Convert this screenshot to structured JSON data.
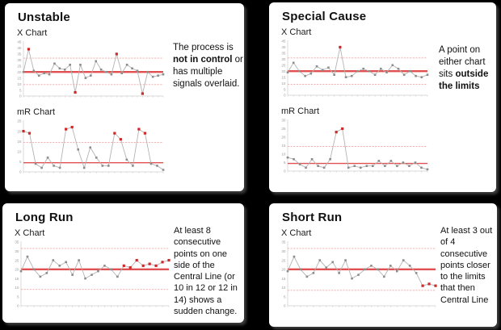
{
  "colors": {
    "background": "#000000",
    "panel": "#ffffff",
    "limit_line": "#f0a8a8",
    "center_line": "#e05050",
    "series_line": "#b3b3b3",
    "marker": "#8c8c8c",
    "marker_out": "#cc2a2a",
    "axis": "#cccccc",
    "tick_label": "#9a9a9a"
  },
  "panels": [
    {
      "title": "Unstable",
      "description": [
        {
          "text": "The process is ",
          "bold": false
        },
        {
          "text": "not in control",
          "bold": true
        },
        {
          "text": " or has multiple signals overlaid.",
          "bold": false
        }
      ]
    },
    {
      "title": "Special Cause",
      "description": [
        {
          "text": "A point on either chart sits ",
          "bold": false
        },
        {
          "text": "outside the limits",
          "bold": true
        }
      ]
    },
    {
      "title": "Long Run",
      "description": [
        {
          "text": "At least 8 consecutive points on one side of the Central Line (or 10 in 12 or 12 in 14) shows a sudden change.",
          "bold": false
        }
      ]
    },
    {
      "title": "Short Run",
      "description": [
        {
          "text": "At least 3 out of 4 consecutive points closer to the limits that then Central Line",
          "bold": false
        }
      ]
    }
  ],
  "chart_data": [
    {
      "id": "unstable-x-chart",
      "type": "line",
      "title": "X Chart",
      "ylim": [
        0,
        45
      ],
      "yticks": [
        0,
        5,
        10,
        15,
        20,
        25,
        30,
        35,
        40,
        45
      ],
      "center_line": 20,
      "upper_limit": 31.5,
      "lower_limit": 9.5,
      "center_thick": true,
      "values": [
        20,
        39,
        21,
        17,
        19,
        18,
        27,
        23,
        22,
        26,
        3,
        26,
        15,
        17,
        29,
        22,
        20,
        18,
        35,
        19,
        26,
        23,
        21,
        2,
        20,
        16,
        17,
        18
      ],
      "out_indices": [
        1,
        10,
        18,
        23
      ]
    },
    {
      "id": "unstable-mr-chart",
      "type": "line",
      "title": "mR Chart",
      "ylim": [
        0,
        25
      ],
      "yticks": [
        0,
        5,
        10,
        15,
        20,
        25
      ],
      "center_line": 4.5,
      "upper_limit": 14.5,
      "lower_limit": null,
      "center_thick": false,
      "values": [
        20,
        19,
        4,
        2,
        7,
        3,
        2,
        21,
        22,
        11,
        2,
        12,
        7,
        3,
        3,
        19,
        16,
        6,
        3,
        21,
        19,
        4,
        3,
        1
      ],
      "out_indices": [
        0,
        1,
        7,
        8,
        15,
        16,
        19,
        20
      ]
    },
    {
      "id": "special-x-chart",
      "type": "line",
      "title": "X Chart",
      "ylim": [
        0,
        45
      ],
      "yticks": [
        0,
        5,
        10,
        15,
        20,
        25,
        30,
        35,
        40,
        45
      ],
      "center_line": 20,
      "upper_limit": 31,
      "lower_limit": 9,
      "center_thick": true,
      "values": [
        19,
        27,
        20,
        16,
        18,
        24,
        21,
        23,
        17,
        40,
        15,
        16,
        20,
        22,
        20,
        17,
        22,
        19,
        25,
        22,
        17,
        20,
        16,
        15,
        17
      ],
      "out_indices": [
        9
      ]
    },
    {
      "id": "special-mr-chart",
      "type": "line",
      "title": "mR Chart",
      "ylim": [
        0,
        30
      ],
      "yticks": [
        0,
        5,
        10,
        15,
        20,
        25,
        30
      ],
      "center_line": 4.5,
      "upper_limit": 14.5,
      "lower_limit": null,
      "center_thick": false,
      "values": [
        8,
        7,
        4,
        2,
        7,
        3,
        2,
        7,
        23,
        25,
        2,
        3,
        2,
        3,
        3,
        6,
        3,
        6,
        3,
        5,
        3,
        5,
        2,
        1
      ],
      "out_indices": [
        8,
        9
      ]
    },
    {
      "id": "longrun-x-chart",
      "type": "line",
      "title": "X Chart",
      "ylim": [
        0,
        35
      ],
      "yticks": [
        0,
        5,
        10,
        15,
        20,
        25,
        30,
        35
      ],
      "center_line": 20,
      "upper_limit": 31.5,
      "lower_limit": 9,
      "center_thick": true,
      "values": [
        19,
        27,
        20,
        16,
        18,
        25,
        22,
        24,
        17,
        25,
        15,
        17,
        19,
        22,
        20,
        16,
        22,
        21,
        25,
        22,
        23,
        22,
        24,
        25
      ],
      "out_indices": [
        16,
        17,
        18,
        19,
        20,
        21,
        22,
        23
      ]
    },
    {
      "id": "shortrun-x-chart",
      "type": "line",
      "title": "X Chart",
      "ylim": [
        0,
        35
      ],
      "yticks": [
        0,
        5,
        10,
        15,
        20,
        25,
        30,
        35
      ],
      "center_line": 20,
      "upper_limit": 31.5,
      "lower_limit": 8.5,
      "center_thick": true,
      "values": [
        19,
        27,
        20,
        16,
        18,
        25,
        21,
        24,
        18,
        25,
        15,
        17,
        20,
        22,
        20,
        16,
        22,
        19,
        25,
        22,
        18,
        11,
        12,
        11
      ],
      "out_indices": [
        21,
        22,
        23
      ]
    }
  ]
}
